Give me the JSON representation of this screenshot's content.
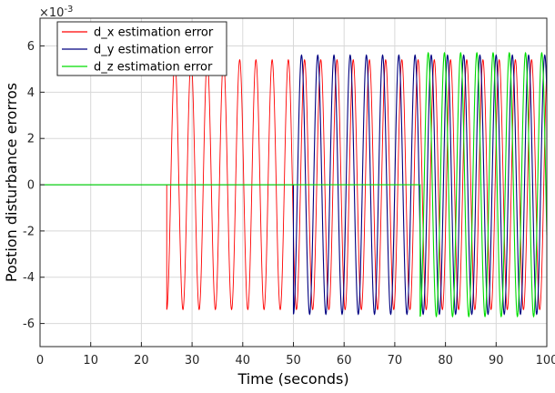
{
  "chart_data": {
    "type": "line",
    "title": "",
    "xlabel": "Time (seconds)",
    "ylabel": "Postion disturbance erorros",
    "exponent_label": "×10",
    "exponent_value": "-3",
    "xlim": [
      0,
      100
    ],
    "ylim": [
      -7,
      7.2
    ],
    "xticks": [
      "0",
      "10",
      "20",
      "30",
      "40",
      "50",
      "60",
      "70",
      "80",
      "90",
      "100"
    ],
    "yticks": [
      "-6",
      "-4",
      "-2",
      "0",
      "2",
      "4",
      "6"
    ],
    "grid": true,
    "legend_position": "top-left",
    "series": [
      {
        "name": "d_x estimation error",
        "color": "#ff0000",
        "start": 25,
        "end": 100,
        "amplitude": 5.4,
        "period": 3.2,
        "initial_value": -2.6
      },
      {
        "name": "d_y estimation error",
        "color": "#000080",
        "start": 50,
        "end": 100,
        "amplitude": 5.6,
        "period": 3.2,
        "initial_value": 0
      },
      {
        "name": "d_z estimation error",
        "color": "#00dd00",
        "start": 75,
        "end": 100,
        "amplitude": 5.7,
        "period": 3.2,
        "initial_value": 0
      }
    ]
  }
}
